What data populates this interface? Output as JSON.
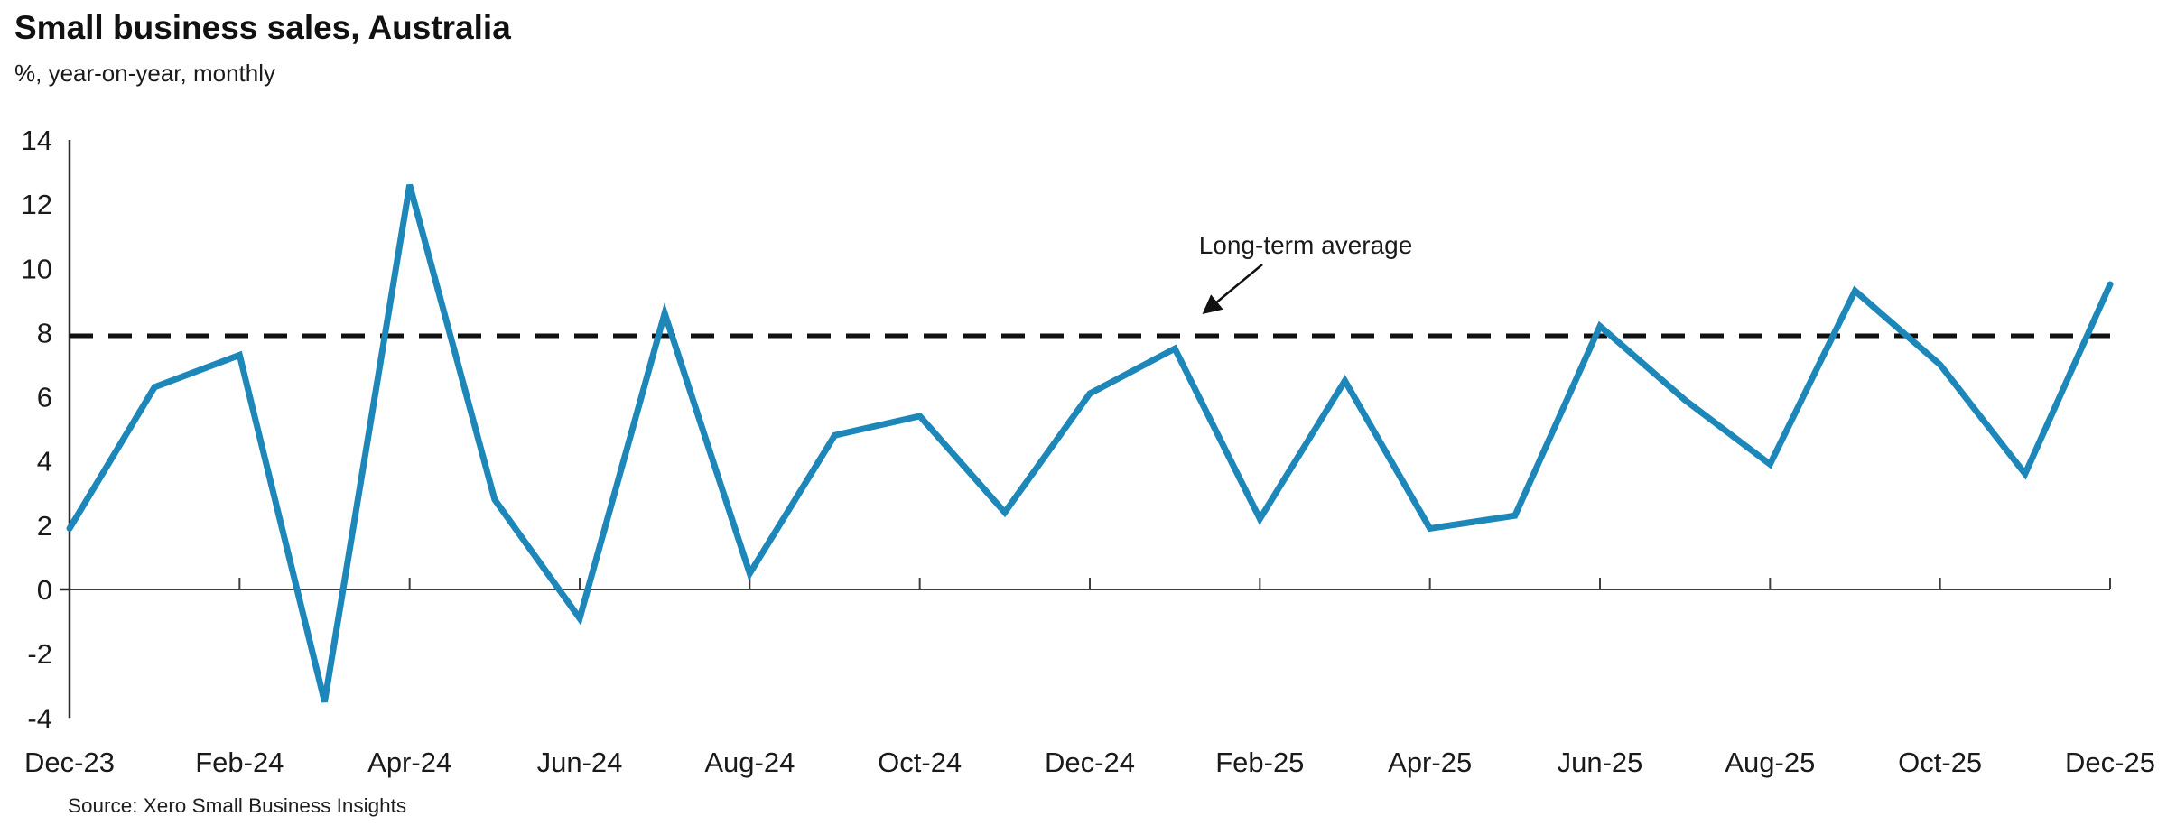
{
  "title": "Small business sales, Australia",
  "subtitle": "%, year-on-year, monthly",
  "source": "Source: Xero Small Business Insights",
  "annotation": {
    "label": "Long-term average"
  },
  "colors": {
    "line": "#1d87ba",
    "axis": "#2b2b2b",
    "zero_line": "#3f3f3f",
    "dashed": "#111111",
    "text": "#1a1a1a"
  },
  "chart_data": {
    "type": "line",
    "x": [
      "Dec-23",
      "Jan-24",
      "Feb-24",
      "Mar-24",
      "Apr-24",
      "May-24",
      "Jun-24",
      "Jul-24",
      "Aug-24",
      "Sep-24",
      "Oct-24",
      "Nov-24",
      "Dec-24",
      "Jan-25",
      "Feb-25",
      "Mar-25",
      "Apr-25",
      "May-25",
      "Jun-25",
      "Jul-25",
      "Aug-25",
      "Sep-25",
      "Oct-25",
      "Nov-25",
      "Dec-25"
    ],
    "values": [
      1.9,
      6.3,
      7.3,
      -3.5,
      12.6,
      2.8,
      -0.9,
      8.6,
      0.5,
      4.8,
      5.4,
      2.4,
      6.1,
      7.5,
      2.2,
      6.5,
      1.9,
      2.3,
      8.2,
      5.9,
      3.9,
      9.3,
      7.0,
      3.6,
      9.5
    ],
    "x_tick_labels": [
      "Dec-23",
      "Feb-24",
      "Apr-24",
      "Jun-24",
      "Aug-24",
      "Oct-24",
      "Dec-24",
      "Feb-25",
      "Apr-25",
      "Jun-25",
      "Aug-25",
      "Oct-25",
      "Dec-25"
    ],
    "yticks": [
      14,
      12,
      10,
      8,
      6,
      4,
      2,
      0,
      -2,
      -4
    ],
    "ylim": [
      -4,
      14
    ],
    "long_term_average": 7.9,
    "grid": false,
    "legend": "none",
    "title": "Small business sales, Australia",
    "ylabel": "%, year-on-year, monthly",
    "xlabel": ""
  }
}
